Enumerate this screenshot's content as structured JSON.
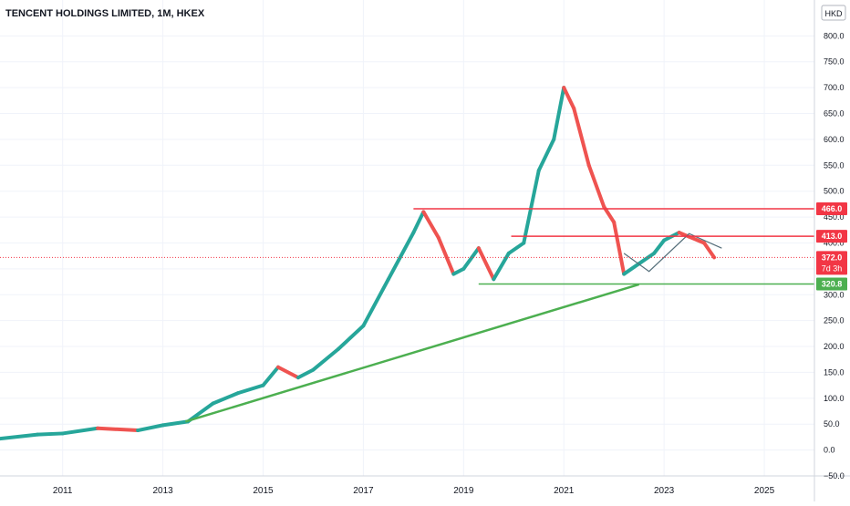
{
  "header": {
    "title": "TENCENT HOLDINGS LIMITED, 1M, HKEX",
    "currency": "HKD"
  },
  "colors": {
    "up": "#26a69a",
    "down": "#ef5350",
    "resistance": "#f23645",
    "support": "#4caf50",
    "pattern_line": "#546e7a",
    "last_price_line": "#f23645",
    "grid": "#f0f3fa",
    "axis_text": "#131722"
  },
  "chart_data": {
    "type": "line",
    "title": "TENCENT HOLDINGS LIMITED, 1M, HKEX",
    "xlabel": "",
    "ylabel": "",
    "x_ticks": [
      "2011",
      "2013",
      "2015",
      "2017",
      "2019",
      "2021",
      "2023",
      "2025"
    ],
    "y_ticks": [
      -50,
      0,
      50,
      100,
      150,
      200,
      250,
      300,
      350,
      400,
      450,
      500,
      550,
      600,
      650,
      700,
      750,
      800
    ],
    "y_tick_labels": [
      "−50.0",
      "0.0",
      "50.0",
      "100.0",
      "150.0",
      "200.0",
      "250.0",
      "300.0",
      "350.0",
      "400.0",
      "450.0",
      "500.0",
      "550.0",
      "600.0",
      "650.0",
      "700.0",
      "750.0",
      "800.0"
    ],
    "ylim": [
      -50,
      820
    ],
    "xlim": [
      2009.75,
      2026.0
    ],
    "grid": true,
    "series": [
      {
        "style": "candlestick-approximation",
        "x": [
          2009.75,
          2010.5,
          2011.0,
          2011.7,
          2012.5,
          2013.0,
          2013.5,
          2014.0,
          2014.5,
          2015.0,
          2015.3,
          2015.7,
          2016.0,
          2016.5,
          2017.0,
          2017.5,
          2018.0,
          2018.2,
          2018.5,
          2018.8,
          2019.0,
          2019.3,
          2019.6,
          2019.9,
          2020.2,
          2020.5,
          2020.8,
          2021.0,
          2021.2,
          2021.5,
          2021.8,
          2022.0,
          2022.2,
          2022.5,
          2022.8,
          2023.0,
          2023.3,
          2023.5,
          2023.8,
          2024.0
        ],
        "values": [
          22,
          30,
          32,
          42,
          38,
          48,
          55,
          90,
          110,
          125,
          160,
          140,
          155,
          195,
          240,
          330,
          420,
          460,
          410,
          340,
          350,
          390,
          330,
          380,
          400,
          540,
          600,
          700,
          660,
          550,
          470,
          440,
          340,
          360,
          380,
          405,
          420,
          412,
          400,
          372
        ]
      }
    ],
    "levels": [
      {
        "label": "466.0",
        "value": 466.0,
        "kind": "resistance"
      },
      {
        "label": "413.0",
        "value": 413.0,
        "kind": "resistance"
      },
      {
        "label": "320.8",
        "value": 320.8,
        "kind": "support"
      }
    ],
    "trendline": {
      "from": [
        2013.45,
        55
      ],
      "to": [
        2022.5,
        320
      ]
    },
    "pattern_polyline": {
      "x": [
        2022.2,
        2022.7,
        2023.5,
        2024.15
      ],
      "y": [
        380,
        345,
        418,
        390
      ]
    },
    "last_price": {
      "label": "372.0",
      "value": 372.0,
      "countdown": "7d 3h"
    }
  }
}
